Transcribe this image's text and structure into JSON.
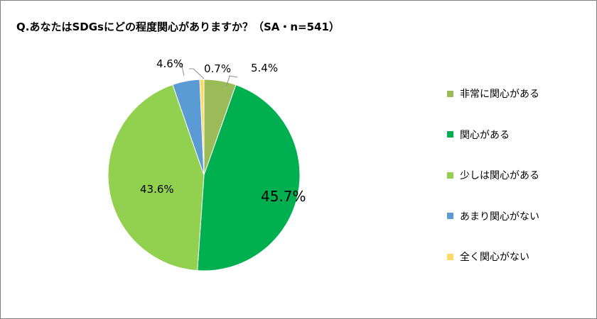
{
  "chart_data": {
    "type": "pie",
    "title": "Q.あなたはSDGsにどの程度関心がありますか？（SA・n=541）",
    "legend_position": "right",
    "slices": [
      {
        "label": "非常に関心がある",
        "value": 5.4,
        "value_label": "5.4%",
        "color": "#9bbb59"
      },
      {
        "label": "関心がある",
        "value": 45.7,
        "value_label": "45.7%",
        "color": "#00b050"
      },
      {
        "label": "少しは関心がある",
        "value": 43.6,
        "value_label": "43.6%",
        "color": "#92d050"
      },
      {
        "label": "あまり関心がない",
        "value": 4.6,
        "value_label": "4.6%",
        "color": "#5b9bd5"
      },
      {
        "label": "全く関心がない",
        "value": 0.7,
        "value_label": "0.7%",
        "color": "#ffd966"
      }
    ]
  }
}
